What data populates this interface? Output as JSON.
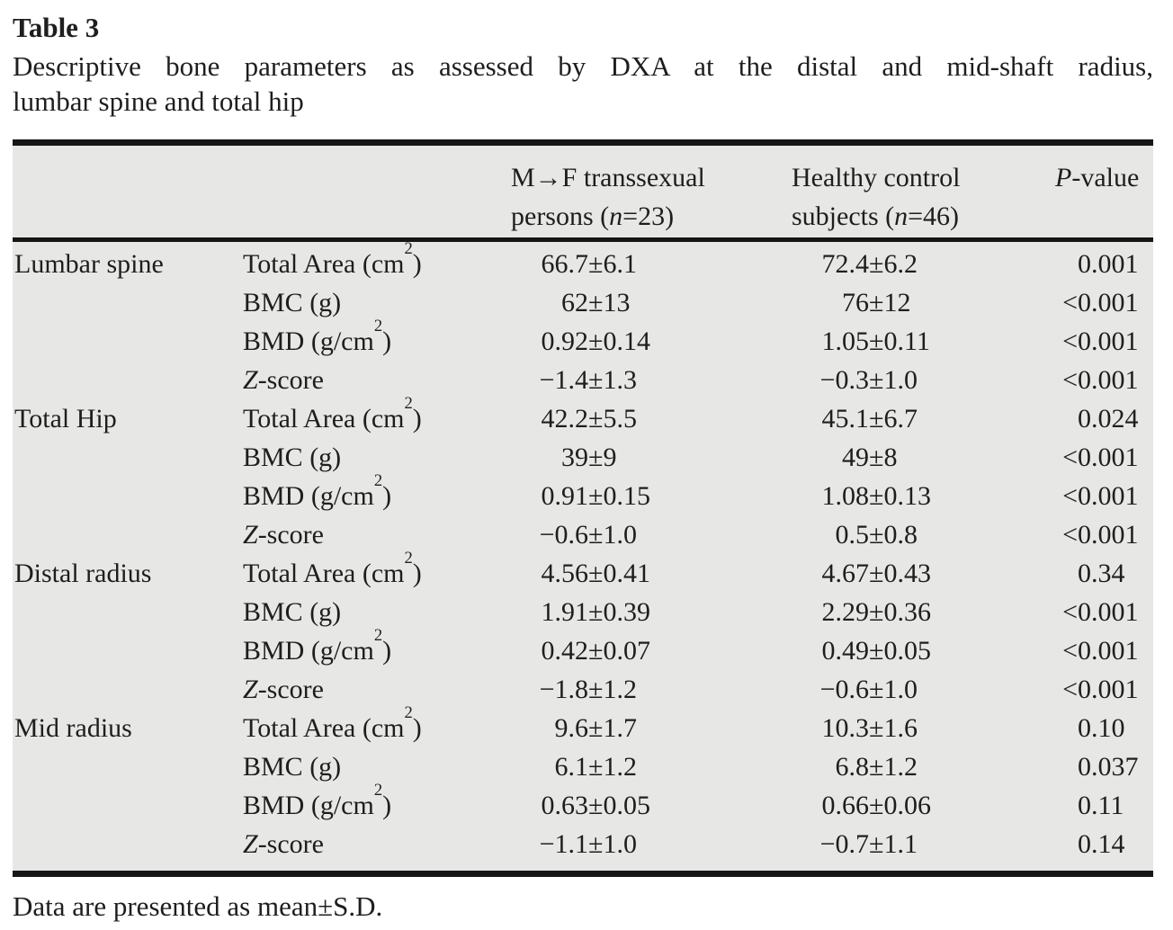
{
  "page": {
    "label": "Table 3",
    "caption_line1": "Descriptive bone parameters as assessed by DXA at the distal and mid-shaft radius,",
    "caption_line2": "lumbar spine and total hip",
    "footnote": "Data are presented as mean±S.D."
  },
  "colors": {
    "table_background": "#e7e7e6",
    "rule": "#161616",
    "text": "#1e1e1e"
  },
  "table": {
    "header": {
      "mf_line1": "M→F transsexual",
      "mf_line2": {
        "pre": "persons (",
        "italic": "n",
        "post": "=23)"
      },
      "hc_line1": "Healthy control",
      "hc_line2": {
        "pre": "subjects (",
        "italic": "n",
        "post": "=46)"
      },
      "p": {
        "italic": "P",
        "post": "-value"
      }
    },
    "rows": [
      {
        "group": "Lumbar spine",
        "param": "Total Area (cm²)",
        "mf": "66.7±6.1",
        "hc": "72.4±6.2",
        "p": "0.001"
      },
      {
        "group": "",
        "param": "BMC (g)",
        "mf": "62±13",
        "hc": "76±12",
        "p": "<0.001"
      },
      {
        "group": "",
        "param": "BMD (g/cm²)",
        "mf": "0.92±0.14",
        "hc": "1.05±0.11",
        "p": "<0.001"
      },
      {
        "group": "",
        "param": "Z-score",
        "italic_first": true,
        "mf": "−1.4±1.3",
        "hc": "−0.3±1.0",
        "p": "<0.001"
      },
      {
        "group": "Total Hip",
        "param": "Total Area (cm²)",
        "mf": "42.2±5.5",
        "hc": "45.1±6.7",
        "p": "0.024"
      },
      {
        "group": "",
        "param": "BMC (g)",
        "mf": "39±9",
        "hc": "49±8",
        "p": "<0.001"
      },
      {
        "group": "",
        "param": "BMD (g/cm²)",
        "mf": "0.91±0.15",
        "hc": "1.08±0.13",
        "p": "<0.001"
      },
      {
        "group": "",
        "param": "Z-score",
        "italic_first": true,
        "mf": "−0.6±1.0",
        "hc": "0.5±0.8",
        "p": "<0.001"
      },
      {
        "group": "Distal radius",
        "param": "Total Area (cm²)",
        "mf": "4.56±0.41",
        "hc": "4.67±0.43",
        "p": "0.34"
      },
      {
        "group": "",
        "param": "BMC (g)",
        "mf": "1.91±0.39",
        "hc": "2.29±0.36",
        "p": "<0.001"
      },
      {
        "group": "",
        "param": "BMD (g/cm²)",
        "mf": "0.42±0.07",
        "hc": "0.49±0.05",
        "p": "<0.001"
      },
      {
        "group": "",
        "param": "Z-score",
        "italic_first": true,
        "mf": "−1.8±1.2",
        "hc": "−0.6±1.0",
        "p": "<0.001"
      },
      {
        "group": "Mid radius",
        "param": "Total Area (cm²)",
        "mf": "9.6±1.7",
        "hc": "10.3±1.6",
        "p": "0.10"
      },
      {
        "group": "",
        "param": "BMC (g)",
        "mf": "6.1±1.2",
        "hc": "6.8±1.2",
        "p": "0.037"
      },
      {
        "group": "",
        "param": "BMD (g/cm²)",
        "mf": "0.63±0.05",
        "hc": "0.66±0.06",
        "p": "0.11"
      },
      {
        "group": "",
        "param": "Z-score",
        "italic_first": true,
        "mf": "−1.1±1.0",
        "hc": "−0.7±1.1",
        "p": "0.14"
      }
    ]
  }
}
